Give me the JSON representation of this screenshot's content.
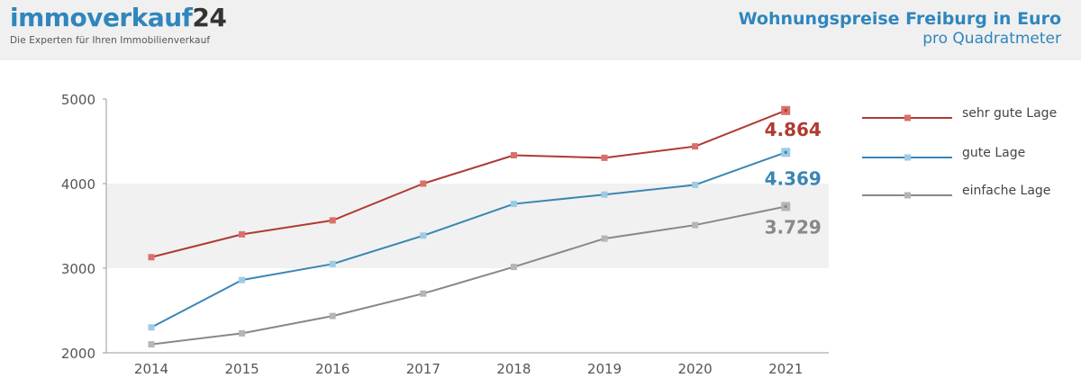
{
  "header": {
    "logo_part1": "immoverkauf",
    "logo_part2": "24",
    "tagline": "Die Experten für Ihren Immobilienverkauf",
    "title": "Wohnungspreise Freiburg in Euro",
    "subtitle": "pro Quadratmeter"
  },
  "colors": {
    "brand_blue": "#2f86bd",
    "sehr_gute_lage": "#b03a32",
    "gute_lage": "#3a86b4",
    "einfache_lage": "#888888"
  },
  "chart_data": {
    "type": "line",
    "title": "Wohnungspreise Freiburg in Euro",
    "subtitle": "pro Quadratmeter",
    "categories": [
      "2014",
      "2015",
      "2016",
      "2017",
      "2018",
      "2019",
      "2020",
      "2021"
    ],
    "ylim": [
      2000,
      5000
    ],
    "yticks": [
      "2000",
      "3000",
      "4000",
      "5000"
    ],
    "grid": "alternating horizontal bands",
    "legend_position": "right",
    "series": [
      {
        "name": "sehr gute Lage",
        "color": "#b03a32",
        "marker_color": "#d9706a",
        "values": [
          3130,
          3400,
          3565,
          4000,
          4335,
          4305,
          4440,
          4864
        ],
        "end_label": "4.864"
      },
      {
        "name": "gute Lage",
        "color": "#3a86b4",
        "marker_color": "#9ccbe6",
        "values": [
          2300,
          2860,
          3050,
          3385,
          3760,
          3870,
          3985,
          4369
        ],
        "end_label": "4.369"
      },
      {
        "name": "einfache Lage",
        "color": "#888888",
        "marker_color": "#b5b5b5",
        "values": [
          2100,
          2230,
          2435,
          2700,
          3015,
          3350,
          3510,
          3729
        ],
        "end_label": "3.729"
      }
    ]
  }
}
